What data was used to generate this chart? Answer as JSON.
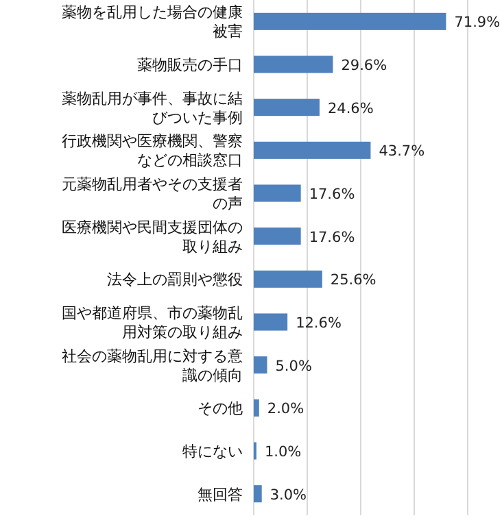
{
  "chart_data": {
    "type": "bar",
    "orientation": "horizontal",
    "categories": [
      "薬物を乱用した場合の健康被害",
      "薬物販売の手口",
      "薬物乱用が事件、事故に結びついた事例",
      "行政機関や医療機関、警察などの相談窓口",
      "元薬物乱用者やその支援者の声",
      "医療機関や民間支援団体の取り組み",
      "法令上の罰則や懲役",
      "国や都道府県、市の薬物乱用対策の取り組み",
      "社会の薬物乱用に対する意識の傾向",
      "その他",
      "特にない",
      "無回答"
    ],
    "values": [
      71.9,
      29.6,
      24.6,
      43.7,
      17.6,
      17.6,
      25.6,
      12.6,
      5.0,
      2.0,
      1.0,
      3.0
    ],
    "value_labels": [
      "71.9%",
      "29.6%",
      "24.6%",
      "43.7%",
      "17.6%",
      "17.6%",
      "25.6%",
      "12.6%",
      "5.0%",
      "2.0%",
      "1.0%",
      "3.0%"
    ],
    "color": "#4f81bd",
    "xlim": [
      0,
      80
    ],
    "xticks": [
      {
        "value": 0,
        "label": null
      },
      {
        "value": 20,
        "label": null
      },
      {
        "value": 40,
        "label": null
      },
      {
        "value": 60,
        "label": null
      },
      {
        "value": 80,
        "label": null
      }
    ],
    "grid": "x"
  }
}
